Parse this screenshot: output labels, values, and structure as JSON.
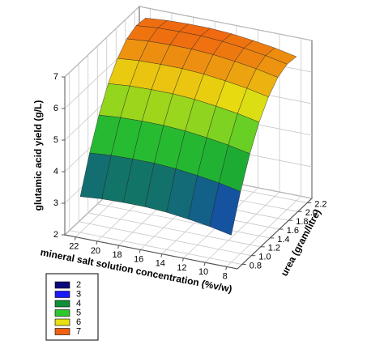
{
  "chart_data": {
    "type": "surface",
    "x_label": "mineral salt solution concentration (%v/w)",
    "y_label": "urea (gram/litre)",
    "z_label": "glutamic acid yield (g/L)",
    "x": [
      22,
      20,
      18,
      16,
      14,
      12,
      10,
      8
    ],
    "y": [
      0.8,
      1.0,
      1.2,
      1.4,
      1.6,
      1.8,
      2.0,
      2.2
    ],
    "z": [
      [
        3.14,
        3.2,
        3.22,
        3.22,
        3.18,
        3.1,
        3.0,
        2.86
      ],
      [
        4.24,
        4.3,
        4.32,
        4.32,
        4.28,
        4.2,
        4.1,
        3.96
      ],
      [
        5.16,
        5.22,
        5.24,
        5.24,
        5.2,
        5.12,
        5.02,
        4.88
      ],
      [
        5.88,
        5.94,
        5.96,
        5.96,
        5.92,
        5.84,
        5.74,
        5.6
      ],
      [
        6.4,
        6.46,
        6.48,
        6.48,
        6.44,
        6.36,
        6.26,
        6.12
      ],
      [
        6.74,
        6.8,
        6.82,
        6.82,
        6.78,
        6.7,
        6.6,
        6.46
      ],
      [
        6.88,
        6.94,
        6.96,
        6.96,
        6.92,
        6.84,
        6.74,
        6.6
      ],
      [
        6.84,
        6.9,
        6.92,
        6.92,
        6.88,
        6.8,
        6.7,
        6.56
      ]
    ],
    "xlim": [
      23,
      7
    ],
    "ylim": [
      0.7,
      2.3
    ],
    "zlim": [
      2,
      7
    ],
    "xticks": [
      22,
      20,
      18,
      16,
      14,
      12,
      10,
      8
    ],
    "yticks": [
      0.8,
      {
        "value": 1,
        "label": "1.0"
      },
      1.2,
      1.4,
      1.6,
      1.8,
      {
        "value": 2,
        "label": "2.0"
      },
      2.2
    ],
    "zticks": [
      2,
      3,
      4,
      5,
      6,
      7
    ],
    "grid": true,
    "legend": {
      "position": "bottom-left",
      "levels": [
        2,
        3,
        4,
        5,
        6,
        7
      ],
      "colors": [
        "#0a0a78",
        "#1a1aff",
        "#0f8f3a",
        "#2ec82e",
        "#e8e010",
        "#f06010"
      ]
    }
  }
}
